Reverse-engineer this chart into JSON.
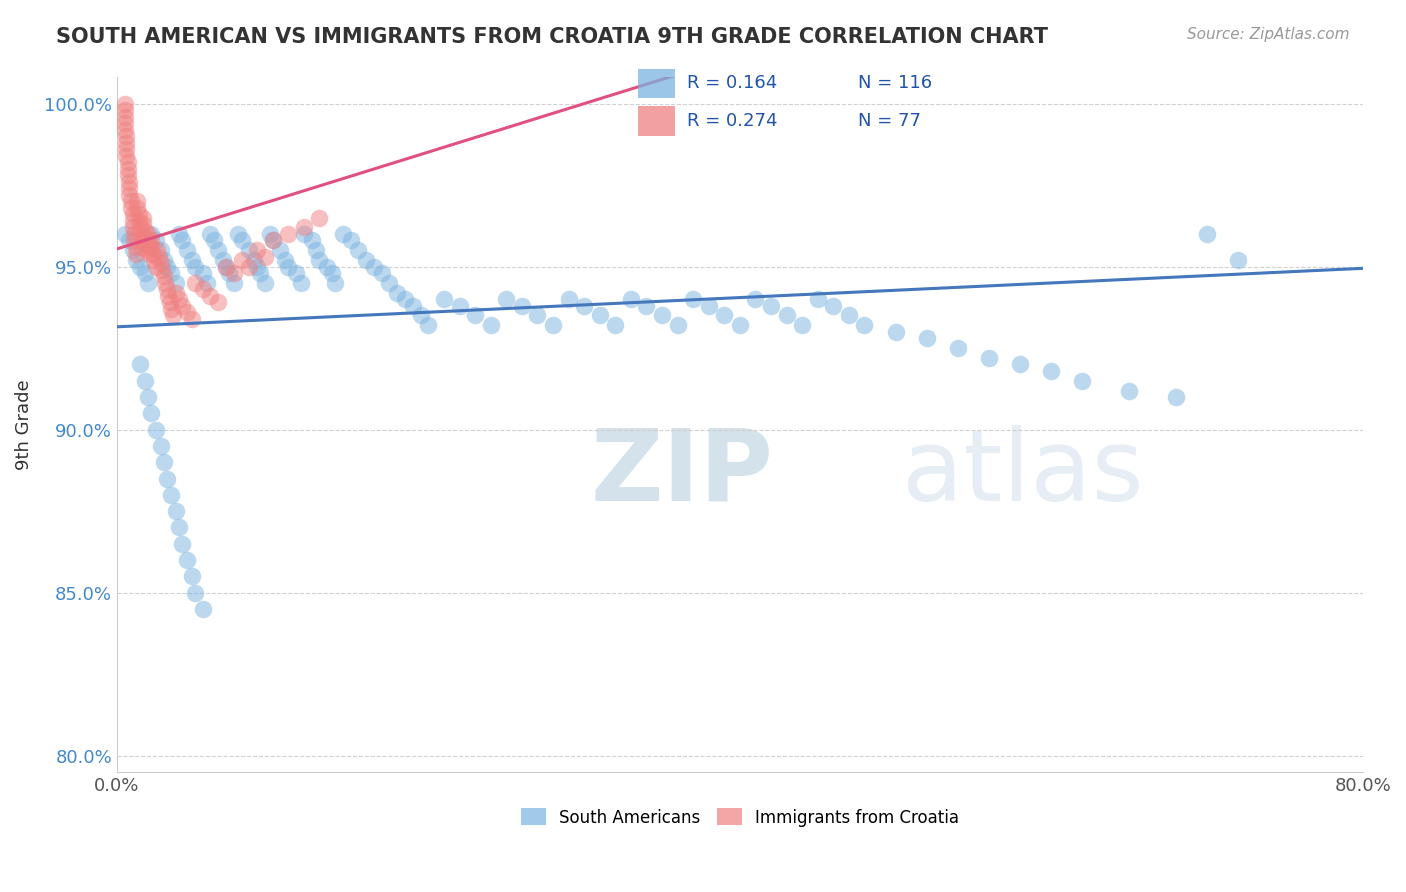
{
  "title": "SOUTH AMERICAN VS IMMIGRANTS FROM CROATIA 9TH GRADE CORRELATION CHART",
  "source": "Source: ZipAtlas.com",
  "xlabel": "",
  "ylabel": "9th Grade",
  "xlim": [
    0.0,
    0.8
  ],
  "ylim": [
    0.795,
    1.008
  ],
  "xticks": [
    0.0,
    0.8
  ],
  "xtick_labels": [
    "0.0%",
    "80.0%"
  ],
  "yticks": [
    0.8,
    0.85,
    0.9,
    0.95,
    1.0
  ],
  "ytick_labels": [
    "80.0%",
    "85.0%",
    "90.0%",
    "95.0%",
    "100.0%"
  ],
  "R_blue": 0.164,
  "N_blue": 116,
  "R_pink": 0.274,
  "N_pink": 77,
  "blue_color": "#7ab3e0",
  "pink_color": "#f08080",
  "trend_blue": "#4477bb",
  "trend_pink": "#e05080",
  "watermark_zip": "ZIP",
  "watermark_atlas": "atlas",
  "legend_label_blue": "South Americans",
  "legend_label_pink": "Immigrants from Croatia",
  "blue_scatter_x": [
    0.005,
    0.008,
    0.01,
    0.012,
    0.015,
    0.018,
    0.02,
    0.022,
    0.025,
    0.028,
    0.03,
    0.032,
    0.035,
    0.038,
    0.04,
    0.042,
    0.045,
    0.048,
    0.05,
    0.055,
    0.058,
    0.06,
    0.062,
    0.065,
    0.068,
    0.07,
    0.072,
    0.075,
    0.078,
    0.08,
    0.085,
    0.088,
    0.09,
    0.092,
    0.095,
    0.098,
    0.1,
    0.105,
    0.108,
    0.11,
    0.115,
    0.118,
    0.12,
    0.125,
    0.128,
    0.13,
    0.135,
    0.138,
    0.14,
    0.145,
    0.15,
    0.155,
    0.16,
    0.165,
    0.17,
    0.175,
    0.18,
    0.185,
    0.19,
    0.195,
    0.2,
    0.21,
    0.22,
    0.23,
    0.24,
    0.25,
    0.26,
    0.27,
    0.28,
    0.29,
    0.3,
    0.31,
    0.32,
    0.33,
    0.34,
    0.35,
    0.36,
    0.37,
    0.38,
    0.39,
    0.4,
    0.41,
    0.42,
    0.43,
    0.44,
    0.45,
    0.46,
    0.47,
    0.48,
    0.5,
    0.52,
    0.54,
    0.56,
    0.58,
    0.6,
    0.62,
    0.65,
    0.68,
    0.7,
    0.72,
    0.015,
    0.018,
    0.02,
    0.022,
    0.025,
    0.028,
    0.03,
    0.032,
    0.035,
    0.038,
    0.04,
    0.042,
    0.045,
    0.048,
    0.05,
    0.055
  ],
  "blue_scatter_y": [
    0.96,
    0.958,
    0.955,
    0.952,
    0.95,
    0.948,
    0.945,
    0.96,
    0.958,
    0.955,
    0.952,
    0.95,
    0.948,
    0.945,
    0.96,
    0.958,
    0.955,
    0.952,
    0.95,
    0.948,
    0.945,
    0.96,
    0.958,
    0.955,
    0.952,
    0.95,
    0.948,
    0.945,
    0.96,
    0.958,
    0.955,
    0.952,
    0.95,
    0.948,
    0.945,
    0.96,
    0.958,
    0.955,
    0.952,
    0.95,
    0.948,
    0.945,
    0.96,
    0.958,
    0.955,
    0.952,
    0.95,
    0.948,
    0.945,
    0.96,
    0.958,
    0.955,
    0.952,
    0.95,
    0.948,
    0.945,
    0.942,
    0.94,
    0.938,
    0.935,
    0.932,
    0.94,
    0.938,
    0.935,
    0.932,
    0.94,
    0.938,
    0.935,
    0.932,
    0.94,
    0.938,
    0.935,
    0.932,
    0.94,
    0.938,
    0.935,
    0.932,
    0.94,
    0.938,
    0.935,
    0.932,
    0.94,
    0.938,
    0.935,
    0.932,
    0.94,
    0.938,
    0.935,
    0.932,
    0.93,
    0.928,
    0.925,
    0.922,
    0.92,
    0.918,
    0.915,
    0.912,
    0.91,
    0.96,
    0.952,
    0.92,
    0.915,
    0.91,
    0.905,
    0.9,
    0.895,
    0.89,
    0.885,
    0.88,
    0.875,
    0.87,
    0.865,
    0.86,
    0.855,
    0.85,
    0.845
  ],
  "pink_scatter_x": [
    0.005,
    0.005,
    0.005,
    0.005,
    0.005,
    0.006,
    0.006,
    0.006,
    0.006,
    0.007,
    0.007,
    0.007,
    0.008,
    0.008,
    0.008,
    0.009,
    0.009,
    0.01,
    0.01,
    0.01,
    0.011,
    0.011,
    0.012,
    0.012,
    0.013,
    0.013,
    0.014,
    0.014,
    0.015,
    0.015,
    0.016,
    0.016,
    0.017,
    0.017,
    0.018,
    0.018,
    0.019,
    0.019,
    0.02,
    0.02,
    0.021,
    0.021,
    0.022,
    0.022,
    0.023,
    0.024,
    0.025,
    0.026,
    0.027,
    0.028,
    0.029,
    0.03,
    0.031,
    0.032,
    0.033,
    0.034,
    0.035,
    0.036,
    0.038,
    0.04,
    0.042,
    0.045,
    0.048,
    0.05,
    0.055,
    0.06,
    0.065,
    0.07,
    0.075,
    0.08,
    0.085,
    0.09,
    0.095,
    0.1,
    0.11,
    0.12,
    0.13
  ],
  "pink_scatter_y": [
    1.0,
    0.998,
    0.996,
    0.994,
    0.992,
    0.99,
    0.988,
    0.986,
    0.984,
    0.982,
    0.98,
    0.978,
    0.976,
    0.974,
    0.972,
    0.97,
    0.968,
    0.966,
    0.964,
    0.962,
    0.96,
    0.958,
    0.956,
    0.954,
    0.97,
    0.968,
    0.966,
    0.964,
    0.962,
    0.96,
    0.958,
    0.956,
    0.965,
    0.963,
    0.961,
    0.959,
    0.957,
    0.955,
    0.96,
    0.958,
    0.956,
    0.954,
    0.958,
    0.956,
    0.954,
    0.952,
    0.95,
    0.955,
    0.953,
    0.951,
    0.949,
    0.947,
    0.945,
    0.943,
    0.941,
    0.939,
    0.937,
    0.935,
    0.942,
    0.94,
    0.938,
    0.936,
    0.934,
    0.945,
    0.943,
    0.941,
    0.939,
    0.95,
    0.948,
    0.952,
    0.95,
    0.955,
    0.953,
    0.958,
    0.96,
    0.962,
    0.965
  ]
}
